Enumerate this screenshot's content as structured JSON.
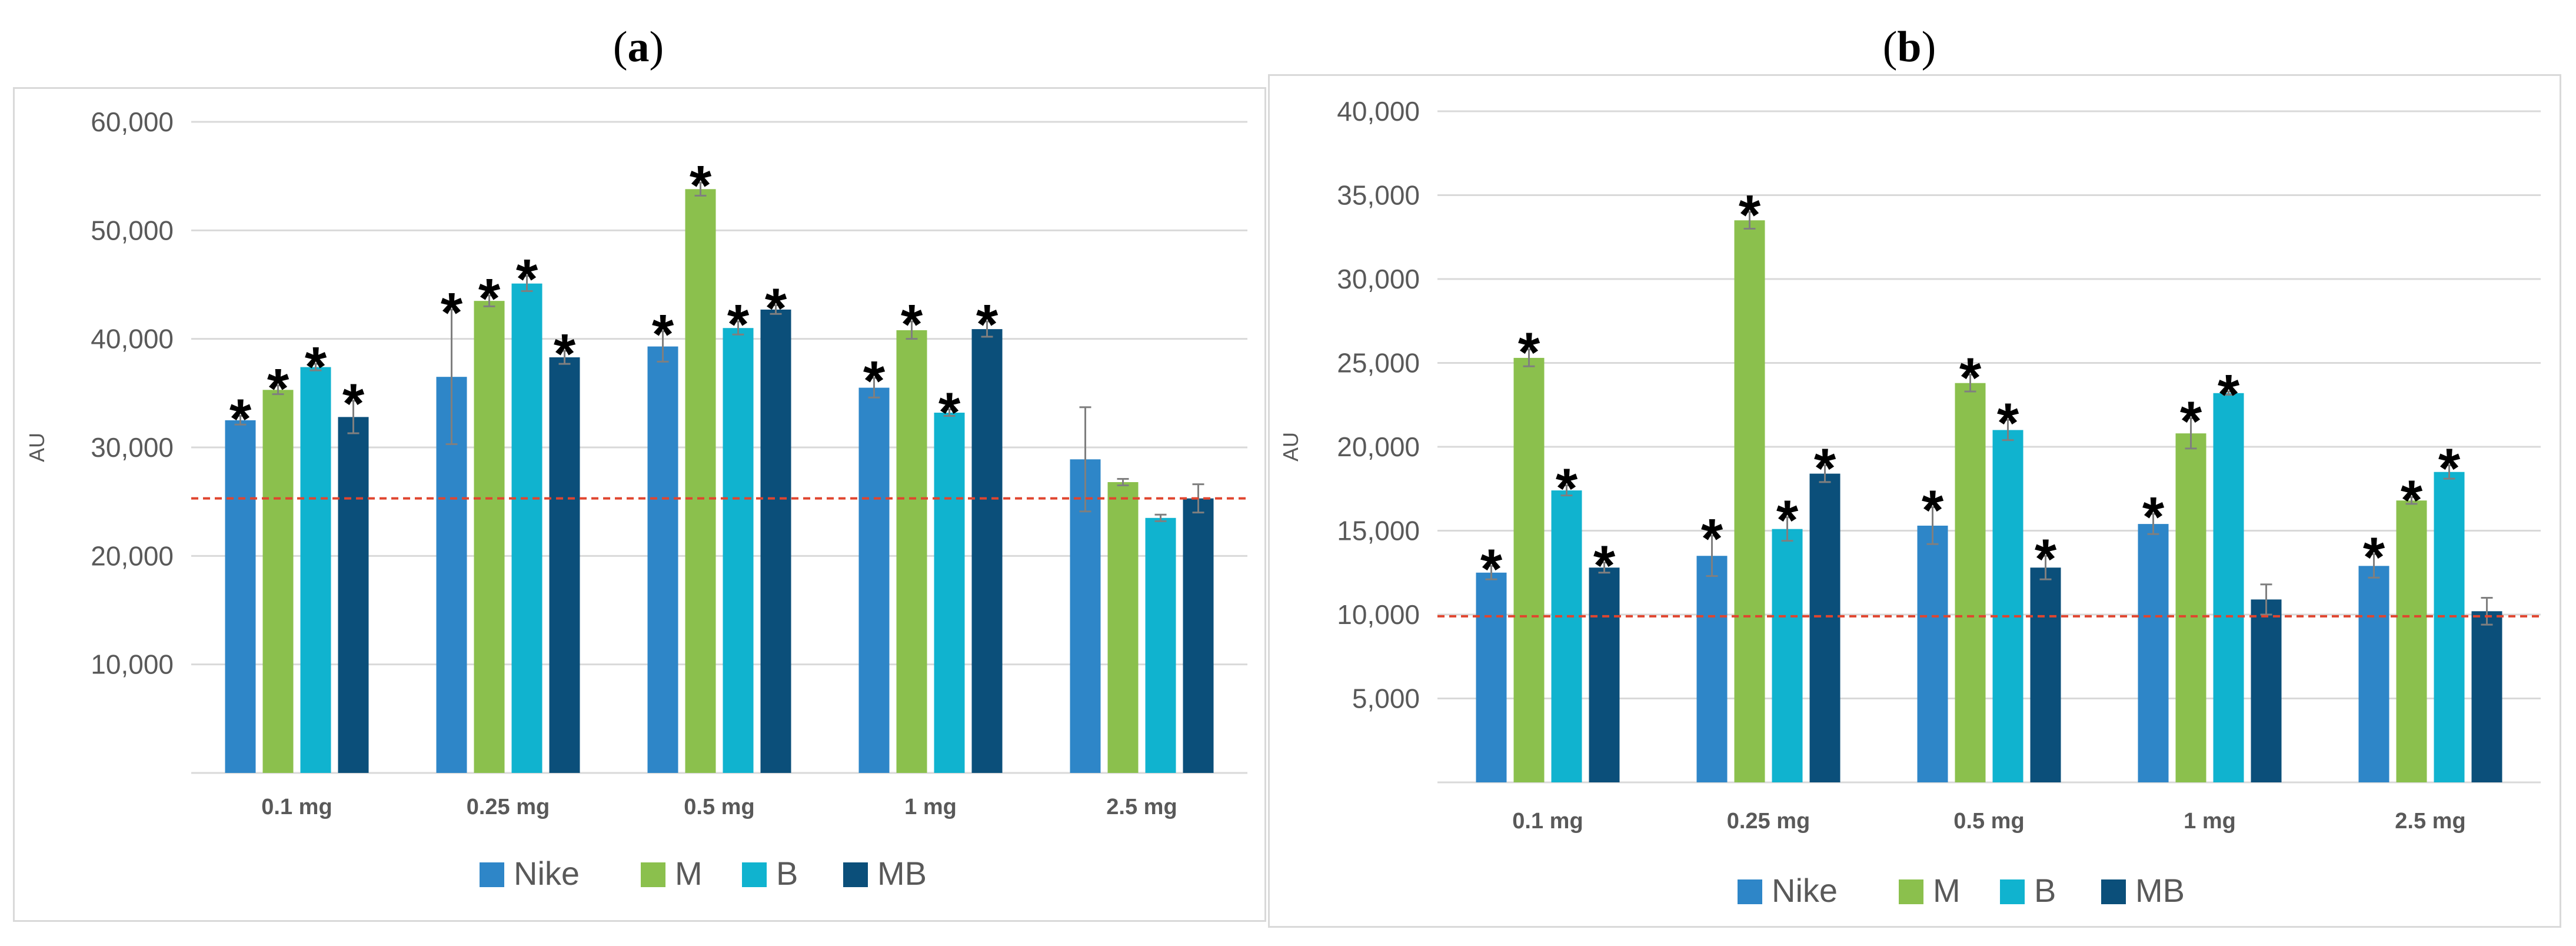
{
  "chart_data": [
    {
      "type": "bar",
      "panel_label": "a",
      "ylabel": "AU",
      "ylim": [
        0,
        60000
      ],
      "yticks": [
        "10,000",
        "20,000",
        "30,000",
        "40,000",
        "50,000",
        "60,000"
      ],
      "ytick_values": [
        10000,
        20000,
        30000,
        40000,
        50000,
        60000
      ],
      "categories": [
        "0.1 mg",
        "0.25 mg",
        "0.5 mg",
        "1 mg",
        "2.5 mg"
      ],
      "reference_line": 25300,
      "series": [
        {
          "name": "Nike",
          "color": "#2e86c8",
          "values": [
            32500,
            36500,
            39300,
            35500,
            28900
          ],
          "errors": [
            400,
            6200,
            1400,
            900,
            4800
          ],
          "significant": [
            true,
            true,
            true,
            true,
            false
          ]
        },
        {
          "name": "M",
          "color": "#8bc04d",
          "values": [
            35300,
            43500,
            53800,
            40800,
            26800
          ],
          "errors": [
            400,
            500,
            600,
            800,
            300
          ],
          "significant": [
            true,
            true,
            true,
            true,
            false
          ]
        },
        {
          "name": "B",
          "color": "#10b3cf",
          "values": [
            37400,
            45100,
            41000,
            33200,
            23500
          ],
          "errors": [
            300,
            700,
            600,
            300,
            300
          ],
          "significant": [
            true,
            true,
            true,
            true,
            false
          ]
        },
        {
          "name": "MB",
          "color": "#0b4f7a",
          "values": [
            32800,
            38300,
            42700,
            40900,
            25300
          ],
          "errors": [
            1500,
            600,
            400,
            700,
            1300
          ],
          "significant": [
            true,
            true,
            true,
            true,
            false
          ]
        }
      ]
    },
    {
      "type": "bar",
      "panel_label": "b",
      "ylabel": "AU",
      "ylim": [
        0,
        40000
      ],
      "yticks": [
        "5,000",
        "10,000",
        "15,000",
        "20,000",
        "25,000",
        "30,000",
        "35,000",
        "40,000"
      ],
      "ytick_values": [
        5000,
        10000,
        15000,
        20000,
        25000,
        30000,
        35000,
        40000
      ],
      "categories": [
        "0.1 mg",
        "0.25 mg",
        "0.5 mg",
        "1 mg",
        "2.5 mg"
      ],
      "reference_line": 9900,
      "series": [
        {
          "name": "Nike",
          "color": "#2e86c8",
          "values": [
            12500,
            13500,
            15300,
            15400,
            12900
          ],
          "errors": [
            400,
            1200,
            1100,
            600,
            700
          ],
          "significant": [
            true,
            true,
            true,
            true,
            true
          ]
        },
        {
          "name": "M",
          "color": "#8bc04d",
          "values": [
            25300,
            33500,
            23800,
            20800,
            16800
          ],
          "errors": [
            500,
            500,
            500,
            900,
            200
          ],
          "significant": [
            true,
            true,
            true,
            true,
            true
          ]
        },
        {
          "name": "B",
          "color": "#10b3cf",
          "values": [
            17400,
            15100,
            21000,
            23200,
            18500
          ],
          "errors": [
            300,
            700,
            600,
            100,
            400
          ],
          "significant": [
            true,
            true,
            true,
            true,
            true
          ]
        },
        {
          "name": "MB",
          "color": "#0b4f7a",
          "values": [
            12800,
            18400,
            12800,
            10900,
            10200
          ],
          "errors": [
            300,
            500,
            700,
            900,
            800
          ],
          "significant": [
            true,
            true,
            true,
            false,
            false
          ]
        }
      ]
    }
  ],
  "star_symbol": "*",
  "ref_line_color": "#e0452f"
}
